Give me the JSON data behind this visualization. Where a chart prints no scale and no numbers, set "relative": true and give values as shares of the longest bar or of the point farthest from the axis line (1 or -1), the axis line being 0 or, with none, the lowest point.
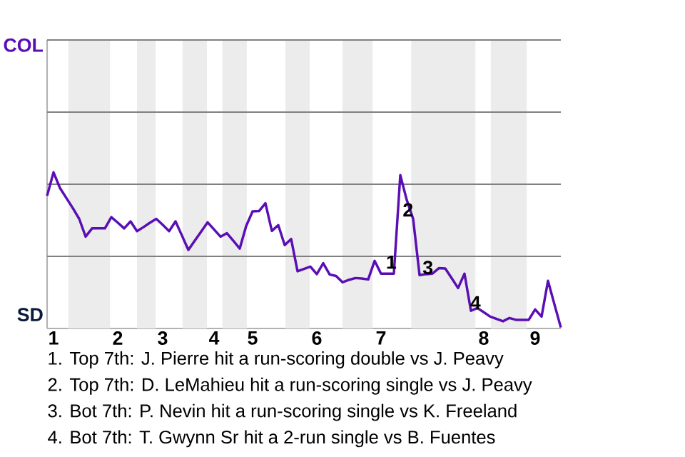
{
  "chart_data": {
    "type": "line",
    "relative": true,
    "categories": [
      null,
      "1",
      null,
      null,
      null,
      null,
      null,
      null,
      null,
      null,
      null,
      "2",
      null,
      null,
      null,
      null,
      null,
      null,
      "3",
      null,
      null,
      null,
      null,
      null,
      null,
      null,
      "4",
      null,
      null,
      null,
      null,
      null,
      "5",
      null,
      null,
      null,
      null,
      null,
      null,
      null,
      null,
      null,
      "6",
      null,
      null,
      null,
      null,
      null,
      null,
      null,
      null,
      null,
      "7",
      null,
      null,
      null,
      null,
      null,
      null,
      null,
      null,
      null,
      null,
      null,
      null,
      null,
      null,
      null,
      "8",
      null,
      null,
      null,
      null,
      null,
      null,
      null,
      "9",
      null,
      null,
      null,
      null
    ],
    "series": [
      {
        "color": "#5a0fb4",
        "values": [
          0.85,
          1,
          0.9,
          0.835,
          0.771,
          0.702,
          0.588,
          0.641,
          0.641,
          0.641,
          0.713,
          0.678,
          0.641,
          0.686,
          0.623,
          0.649,
          0.677,
          0.702,
          0.664,
          0.623,
          0.686,
          0.595,
          0.503,
          0.562,
          0.621,
          0.68,
          0.634,
          0.588,
          0.61,
          0.562,
          0.512,
          0.656,
          0.75,
          0.752,
          0.802,
          0.625,
          0.662,
          0.534,
          0.573,
          0.366,
          0.381,
          0.396,
          0.348,
          0.418,
          0.346,
          0.336,
          0.296,
          0.311,
          0.323,
          0.32,
          0.314,
          0.433,
          0.351,
          0.351,
          0.351,
          0.982,
          0.824,
          0.702,
          0.342,
          0.348,
          0.351,
          0.386,
          0.384,
          0.322,
          0.259,
          0.351,
          0.113,
          0.131,
          0.104,
          0.076,
          0.061,
          0.046,
          0.067,
          0.055,
          0.055,
          0.055,
          0.122,
          0.076,
          0.305,
          0.155,
          0.006
        ],
        "name": null
      }
    ],
    "ref_lines": [
      {
        "axis": "y",
        "value": 0.462,
        "color": "#808080"
      },
      {
        "axis": "y",
        "value": 0.924,
        "color": "#808080"
      },
      {
        "axis": "y",
        "value": 1.386,
        "color": "#808080"
      },
      {
        "axis": "y",
        "value": 1.848,
        "color": "#808080"
      }
    ],
    "marker": "none",
    "line_style": "solid",
    "annotations": [
      "COL",
      "SD",
      "1",
      "2",
      "3",
      "4",
      "1. Top 7th: J. Pierre hit a run-scoring double vs J. Peavy",
      "2. Top 7th: D. LeMahieu hit a run-scoring single vs J. Peavy",
      "3. Bot 7th: P. Nevin hit a run-scoring single vs K. Freeland",
      "4. Bot 7th: T. Gwynn Sr hit a 2-run single vs B. Fuentes"
    ]
  }
}
